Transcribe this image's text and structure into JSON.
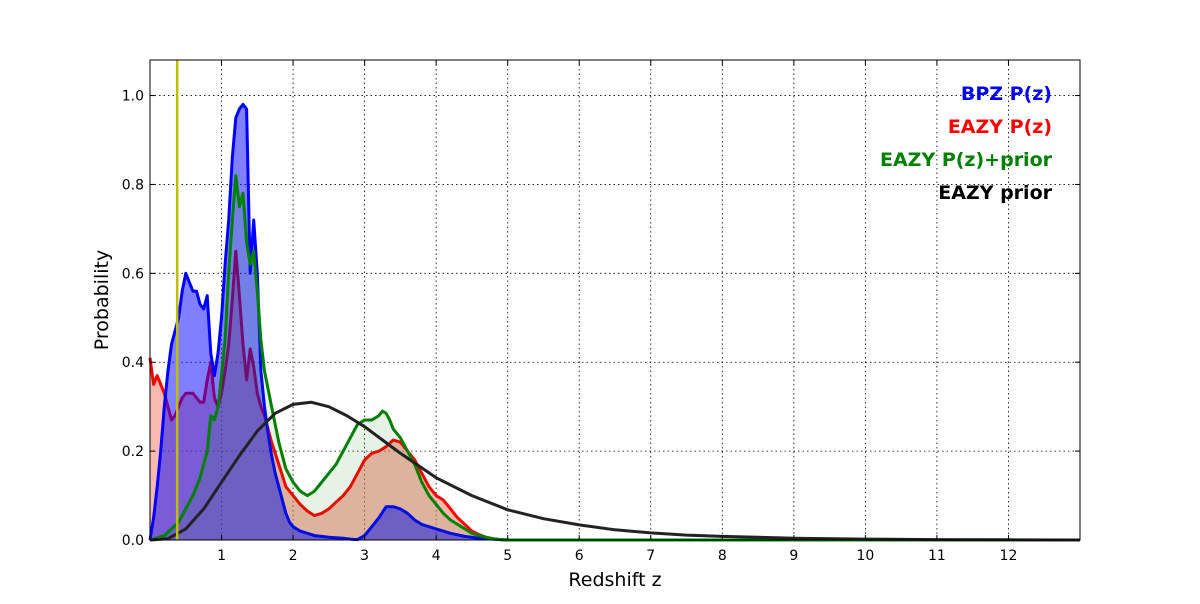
{
  "chart_data": {
    "type": "area",
    "title": "",
    "xlabel": "Redshift z",
    "ylabel": "Probability",
    "xlim": [
      0,
      13
    ],
    "ylim": [
      0,
      1.08
    ],
    "xticks": [
      1,
      2,
      3,
      4,
      5,
      6,
      7,
      8,
      9,
      10,
      11,
      12
    ],
    "xtick_labels": [
      "1",
      "2",
      "3",
      "4",
      "5",
      "6",
      "7",
      "8",
      "9",
      "10",
      "11",
      "12"
    ],
    "yticks": [
      0.0,
      0.2,
      0.4,
      0.6,
      0.8,
      1.0
    ],
    "ytick_labels": [
      "0.0",
      "0.2",
      "0.4",
      "0.6",
      "0.8",
      "1.0"
    ],
    "grid": true,
    "legend_position": "top-right",
    "vertical_line": {
      "x": 0.38,
      "color": "#bfbf00"
    },
    "series": [
      {
        "name": "EAZY P(z)",
        "color": "#ff0000",
        "fill": true,
        "fill_color": "#f08070",
        "fill_opacity": 0.55,
        "x": [
          0.0,
          0.05,
          0.1,
          0.15,
          0.2,
          0.25,
          0.3,
          0.35,
          0.4,
          0.45,
          0.5,
          0.55,
          0.6,
          0.7,
          0.75,
          0.8,
          0.85,
          0.9,
          0.95,
          1.0,
          1.05,
          1.1,
          1.15,
          1.2,
          1.25,
          1.3,
          1.35,
          1.4,
          1.45,
          1.5,
          1.55,
          1.6,
          1.7,
          1.8,
          1.9,
          2.0,
          2.1,
          2.2,
          2.3,
          2.4,
          2.5,
          2.6,
          2.7,
          2.8,
          2.9,
          3.0,
          3.1,
          3.2,
          3.3,
          3.4,
          3.5,
          3.6,
          3.7,
          3.8,
          3.9,
          4.0,
          4.1,
          4.2,
          4.3,
          4.4,
          4.5,
          4.6,
          4.7,
          4.8,
          4.9,
          5.0,
          6.0,
          8.0,
          10.0,
          13.0
        ],
        "values": [
          0.41,
          0.35,
          0.37,
          0.35,
          0.33,
          0.3,
          0.27,
          0.28,
          0.3,
          0.32,
          0.33,
          0.33,
          0.33,
          0.31,
          0.31,
          0.36,
          0.4,
          0.32,
          0.3,
          0.33,
          0.38,
          0.44,
          0.54,
          0.65,
          0.55,
          0.44,
          0.36,
          0.43,
          0.39,
          0.33,
          0.3,
          0.28,
          0.22,
          0.17,
          0.12,
          0.1,
          0.08,
          0.065,
          0.055,
          0.06,
          0.07,
          0.085,
          0.1,
          0.12,
          0.15,
          0.18,
          0.195,
          0.2,
          0.21,
          0.225,
          0.22,
          0.2,
          0.18,
          0.15,
          0.12,
          0.1,
          0.09,
          0.07,
          0.05,
          0.035,
          0.02,
          0.012,
          0.006,
          0.003,
          0.001,
          0.0,
          0.0,
          0.0,
          0.0,
          0.0
        ]
      },
      {
        "name": "BPZ P(z)",
        "color": "#0000ff",
        "fill": true,
        "fill_color": "#0000ff",
        "fill_opacity": 0.5,
        "x": [
          0.0,
          0.05,
          0.1,
          0.15,
          0.2,
          0.25,
          0.3,
          0.35,
          0.4,
          0.45,
          0.5,
          0.55,
          0.6,
          0.65,
          0.7,
          0.75,
          0.8,
          0.85,
          0.9,
          0.95,
          1.0,
          1.05,
          1.1,
          1.15,
          1.2,
          1.25,
          1.3,
          1.35,
          1.4,
          1.45,
          1.5,
          1.55,
          1.6,
          1.65,
          1.7,
          1.75,
          1.8,
          1.85,
          1.9,
          1.95,
          2.0,
          2.1,
          2.2,
          2.3,
          2.4,
          2.5,
          2.6,
          2.7,
          2.8,
          2.9,
          3.0,
          3.1,
          3.2,
          3.3,
          3.4,
          3.5,
          3.6,
          3.7,
          3.8,
          3.9,
          4.0,
          4.2,
          4.4,
          4.6,
          4.8,
          4.9,
          5.0,
          5.2,
          6.0,
          8.0,
          10.0,
          12.0,
          13.0
        ],
        "values": [
          0.0,
          0.05,
          0.12,
          0.2,
          0.3,
          0.38,
          0.44,
          0.47,
          0.5,
          0.56,
          0.6,
          0.58,
          0.56,
          0.56,
          0.53,
          0.52,
          0.55,
          0.42,
          0.37,
          0.42,
          0.5,
          0.62,
          0.72,
          0.86,
          0.95,
          0.97,
          0.98,
          0.97,
          0.6,
          0.72,
          0.6,
          0.38,
          0.3,
          0.24,
          0.19,
          0.15,
          0.12,
          0.09,
          0.06,
          0.04,
          0.03,
          0.02,
          0.015,
          0.01,
          0.008,
          0.006,
          0.005,
          0.004,
          0.002,
          0.001,
          0.01,
          0.03,
          0.05,
          0.075,
          0.075,
          0.07,
          0.06,
          0.045,
          0.035,
          0.03,
          0.025,
          0.015,
          0.008,
          0.004,
          0.002,
          0.001,
          0.0,
          0.0,
          0.0,
          0.0,
          0.0,
          0.0,
          0.0
        ]
      },
      {
        "name": "EAZY P(z)+prior",
        "color": "#008000",
        "fill": true,
        "fill_color": "#008000",
        "fill_opacity": 0.1,
        "x": [
          0.0,
          0.2,
          0.4,
          0.6,
          0.7,
          0.8,
          0.85,
          0.9,
          0.95,
          1.0,
          1.05,
          1.1,
          1.15,
          1.2,
          1.25,
          1.3,
          1.35,
          1.4,
          1.45,
          1.5,
          1.55,
          1.6,
          1.7,
          1.8,
          1.9,
          2.0,
          2.1,
          2.2,
          2.3,
          2.4,
          2.5,
          2.6,
          2.7,
          2.8,
          2.9,
          3.0,
          3.1,
          3.2,
          3.25,
          3.3,
          3.35,
          3.4,
          3.5,
          3.6,
          3.7,
          3.8,
          3.9,
          4.0,
          4.1,
          4.2,
          4.3,
          4.4,
          4.5,
          4.6,
          4.7,
          4.8,
          4.9,
          5.0,
          6.0,
          8.0,
          13.0
        ],
        "values": [
          0.0,
          0.01,
          0.04,
          0.1,
          0.14,
          0.2,
          0.28,
          0.27,
          0.3,
          0.37,
          0.45,
          0.6,
          0.72,
          0.82,
          0.75,
          0.78,
          0.67,
          0.62,
          0.65,
          0.56,
          0.45,
          0.38,
          0.3,
          0.22,
          0.16,
          0.13,
          0.11,
          0.1,
          0.11,
          0.13,
          0.15,
          0.17,
          0.2,
          0.23,
          0.26,
          0.27,
          0.27,
          0.28,
          0.29,
          0.285,
          0.27,
          0.25,
          0.23,
          0.2,
          0.17,
          0.13,
          0.1,
          0.08,
          0.06,
          0.045,
          0.035,
          0.025,
          0.015,
          0.01,
          0.006,
          0.003,
          0.001,
          0.0,
          0.0,
          0.0,
          0.0
        ]
      },
      {
        "name": "EAZY prior",
        "color": "#222222",
        "fill": false,
        "x": [
          0.0,
          0.25,
          0.5,
          0.75,
          1.0,
          1.25,
          1.5,
          1.75,
          2.0,
          2.25,
          2.5,
          2.75,
          3.0,
          3.25,
          3.5,
          4.0,
          4.5,
          5.0,
          5.5,
          6.0,
          6.5,
          7.0,
          7.5,
          8.0,
          9.0,
          10.0,
          11.0,
          12.0,
          13.0
        ],
        "values": [
          0.0,
          0.003,
          0.025,
          0.07,
          0.13,
          0.19,
          0.245,
          0.285,
          0.305,
          0.31,
          0.3,
          0.28,
          0.255,
          0.225,
          0.195,
          0.14,
          0.1,
          0.068,
          0.048,
          0.034,
          0.023,
          0.016,
          0.011,
          0.008,
          0.004,
          0.002,
          0.001,
          0.0005,
          0.0
        ]
      }
    ]
  }
}
